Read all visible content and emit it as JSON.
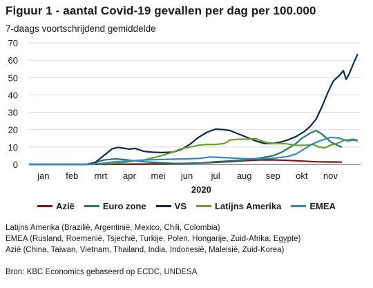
{
  "title": "Figuur 1 - aantal Covid-19 gevallen per dag per 100.000",
  "subtitle": "7-daags voortschrijdend gemiddelde",
  "notes": [
    "Latijns Amerika (Brazilië, Argentinië, Mexico, Chili, Colombia)",
    "EMEA (Rusland, Roemenië, Tsjechië, Turkije, Polen, Hongarije, Zuid-Afrika, Egypte)",
    "Azië (China, Taiwan, Vietnam, Thailand, India, Indonesië, Maleisië, Zuid-Korea)"
  ],
  "source": "Bron: KBC Economics gebaseerd op ECDC, UNDESA",
  "chart_data": {
    "type": "line",
    "x_unit": "month index (0 = 1 jan 2020)",
    "xlim": [
      0,
      11
    ],
    "ylim": [
      0,
      70
    ],
    "y_ticks": [
      0,
      10,
      20,
      30,
      40,
      50,
      60,
      70
    ],
    "x_tick_labels": [
      "jan",
      "feb",
      "mrt",
      "apr",
      "mei",
      "jun",
      "jul",
      "aug",
      "sep",
      "okt",
      "nov"
    ],
    "x_group_label": "2020",
    "legend_position": "bottom",
    "series": [
      {
        "name": "Azië",
        "color": "#8b0d10",
        "points": [
          [
            0,
            0
          ],
          [
            1,
            0
          ],
          [
            2,
            0
          ],
          [
            3,
            0.1
          ],
          [
            4,
            0.2
          ],
          [
            5,
            0.4
          ],
          [
            5.5,
            0.6
          ],
          [
            6,
            0.8
          ],
          [
            6.5,
            1.2
          ],
          [
            7,
            1.6
          ],
          [
            7.5,
            2.1
          ],
          [
            8,
            2.5
          ],
          [
            8.5,
            2.6
          ],
          [
            9,
            2.3
          ],
          [
            9.5,
            1.9
          ],
          [
            10,
            1.5
          ],
          [
            10.5,
            1.4
          ],
          [
            10.9,
            1.3
          ]
        ]
      },
      {
        "name": "Euro zone",
        "color": "#1e7a6a",
        "points": [
          [
            0,
            0
          ],
          [
            2,
            0
          ],
          [
            2.3,
            1
          ],
          [
            2.6,
            2.5
          ],
          [
            3,
            3.2
          ],
          [
            3.3,
            2.8
          ],
          [
            3.6,
            2.2
          ],
          [
            4,
            1.5
          ],
          [
            4.5,
            1
          ],
          [
            5,
            0.6
          ],
          [
            5.5,
            0.5
          ],
          [
            6,
            0.8
          ],
          [
            6.5,
            1.5
          ],
          [
            7,
            2
          ],
          [
            7.5,
            2.5
          ],
          [
            8,
            3.5
          ],
          [
            8.5,
            5
          ],
          [
            8.8,
            7
          ],
          [
            9,
            9
          ],
          [
            9.3,
            12
          ],
          [
            9.5,
            15
          ],
          [
            9.8,
            18
          ],
          [
            10,
            19.5
          ],
          [
            10.2,
            17.5
          ],
          [
            10.5,
            13
          ],
          [
            10.8,
            10.5
          ],
          [
            10.9,
            10
          ]
        ]
      },
      {
        "name": "VS",
        "color": "#0b2a55",
        "points": [
          [
            0,
            0
          ],
          [
            2,
            0
          ],
          [
            2.3,
            1
          ],
          [
            2.6,
            5
          ],
          [
            2.9,
            9
          ],
          [
            3.1,
            9.8
          ],
          [
            3.3,
            9.3
          ],
          [
            3.5,
            8.8
          ],
          [
            3.7,
            9.2
          ],
          [
            4,
            7.5
          ],
          [
            4.3,
            7
          ],
          [
            4.6,
            6.8
          ],
          [
            5,
            7
          ],
          [
            5.3,
            8.5
          ],
          [
            5.6,
            11.5
          ],
          [
            5.9,
            15.5
          ],
          [
            6.2,
            18.5
          ],
          [
            6.5,
            20.3
          ],
          [
            6.8,
            20
          ],
          [
            7,
            19.5
          ],
          [
            7.3,
            17.5
          ],
          [
            7.6,
            15.5
          ],
          [
            7.9,
            13.5
          ],
          [
            8.2,
            12
          ],
          [
            8.5,
            12
          ],
          [
            8.8,
            13
          ],
          [
            9,
            14
          ],
          [
            9.3,
            16
          ],
          [
            9.6,
            19
          ],
          [
            9.8,
            22
          ],
          [
            10,
            26
          ],
          [
            10.2,
            33
          ],
          [
            10.4,
            41
          ],
          [
            10.6,
            48
          ],
          [
            10.8,
            51
          ],
          [
            10.95,
            54
          ],
          [
            11.05,
            49
          ],
          [
            11.15,
            52
          ],
          [
            11.3,
            58
          ],
          [
            11.45,
            63.5
          ]
        ]
      },
      {
        "name": "Latijns Amerika",
        "color": "#6aa121",
        "points": [
          [
            0,
            0
          ],
          [
            2,
            0
          ],
          [
            2.5,
            0.3
          ],
          [
            3,
            0.8
          ],
          [
            3.5,
            1.5
          ],
          [
            4,
            2.5
          ],
          [
            4.5,
            4.5
          ],
          [
            5,
            7
          ],
          [
            5.3,
            9
          ],
          [
            5.6,
            10
          ],
          [
            5.9,
            11
          ],
          [
            6.2,
            11.5
          ],
          [
            6.5,
            11.5
          ],
          [
            6.8,
            12
          ],
          [
            7,
            14
          ],
          [
            7.3,
            14.5
          ],
          [
            7.6,
            14.5
          ],
          [
            7.9,
            14.8
          ],
          [
            8.1,
            13.5
          ],
          [
            8.3,
            12.5
          ],
          [
            8.6,
            12
          ],
          [
            8.9,
            12
          ],
          [
            9.1,
            11.5
          ],
          [
            9.3,
            11
          ],
          [
            9.6,
            11
          ],
          [
            9.9,
            11.5
          ],
          [
            10.1,
            10
          ],
          [
            10.3,
            9.5
          ],
          [
            10.5,
            11
          ],
          [
            10.8,
            12.5
          ],
          [
            11,
            14
          ],
          [
            11.3,
            14.5
          ],
          [
            11.45,
            14
          ]
        ]
      },
      {
        "name": "EMEA",
        "color": "#2b8cc4",
        "points": [
          [
            0,
            0
          ],
          [
            2,
            0
          ],
          [
            2.5,
            0.5
          ],
          [
            3,
            1.5
          ],
          [
            3.5,
            2
          ],
          [
            4,
            2.5
          ],
          [
            4.5,
            2.8
          ],
          [
            5,
            3
          ],
          [
            5.5,
            3.2
          ],
          [
            6,
            3.5
          ],
          [
            6.3,
            4.3
          ],
          [
            6.6,
            4
          ],
          [
            7,
            3.7
          ],
          [
            7.5,
            3.3
          ],
          [
            8,
            3.2
          ],
          [
            8.5,
            3.5
          ],
          [
            9,
            4.5
          ],
          [
            9.3,
            6
          ],
          [
            9.6,
            9
          ],
          [
            9.9,
            12
          ],
          [
            10.2,
            14
          ],
          [
            10.5,
            15.5
          ],
          [
            10.8,
            15.2
          ],
          [
            11.1,
            13.5
          ],
          [
            11.3,
            14
          ],
          [
            11.45,
            13.5
          ]
        ]
      }
    ]
  }
}
